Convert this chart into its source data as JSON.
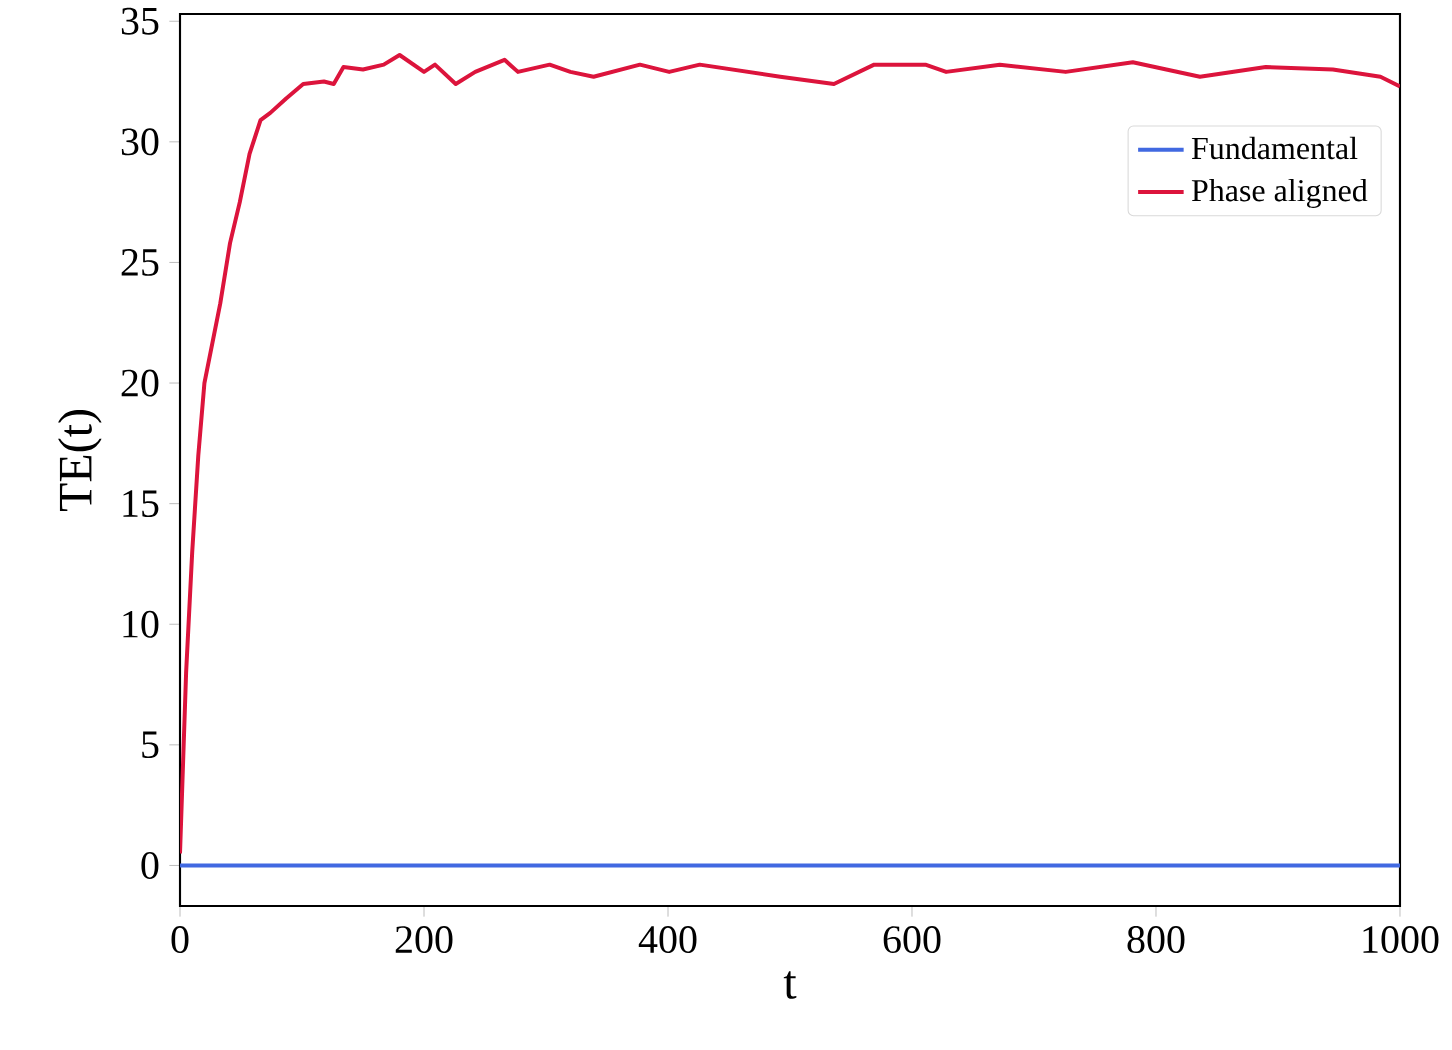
{
  "chart_data": {
    "type": "line",
    "xlabel": "t",
    "ylabel": "TE(t)",
    "xlim": [
      0,
      1000
    ],
    "ylim": [
      -1.68,
      35.3
    ],
    "xticks": [
      0,
      200,
      400,
      600,
      800,
      1000
    ],
    "yticks": [
      0,
      5,
      10,
      15,
      20,
      25,
      30,
      35
    ],
    "legend": "top right",
    "grid": false,
    "series": [
      {
        "name": "Fundamental",
        "color": "#4169e1",
        "x": [
          0,
          1000
        ],
        "values": [
          0,
          0
        ]
      },
      {
        "name": "Phase aligned",
        "color": "#dc143c",
        "x": [
          0,
          5,
          10,
          15,
          20,
          33,
          41,
          49,
          57,
          66,
          74,
          87,
          101,
          118,
          126,
          134,
          150,
          167,
          180,
          200,
          209,
          226,
          242,
          266,
          277,
          303,
          320,
          339,
          377,
          401,
          426,
          492,
          536,
          569,
          611,
          628,
          672,
          726,
          781,
          836,
          890,
          945,
          984,
          1000
        ],
        "values": [
          0.5,
          8,
          13,
          17,
          20,
          23.3,
          25.8,
          27.5,
          29.5,
          30.9,
          31.2,
          31.8,
          32.4,
          32.5,
          32.4,
          33.1,
          33,
          33.2,
          33.6,
          32.9,
          33.2,
          32.4,
          32.9,
          33.4,
          32.9,
          33.2,
          32.9,
          32.7,
          33.2,
          32.9,
          33.2,
          32.7,
          32.4,
          33.2,
          33.2,
          32.9,
          33.2,
          32.9,
          33.3,
          32.7,
          33.1,
          33.0,
          32.7,
          32.3
        ]
      }
    ]
  }
}
